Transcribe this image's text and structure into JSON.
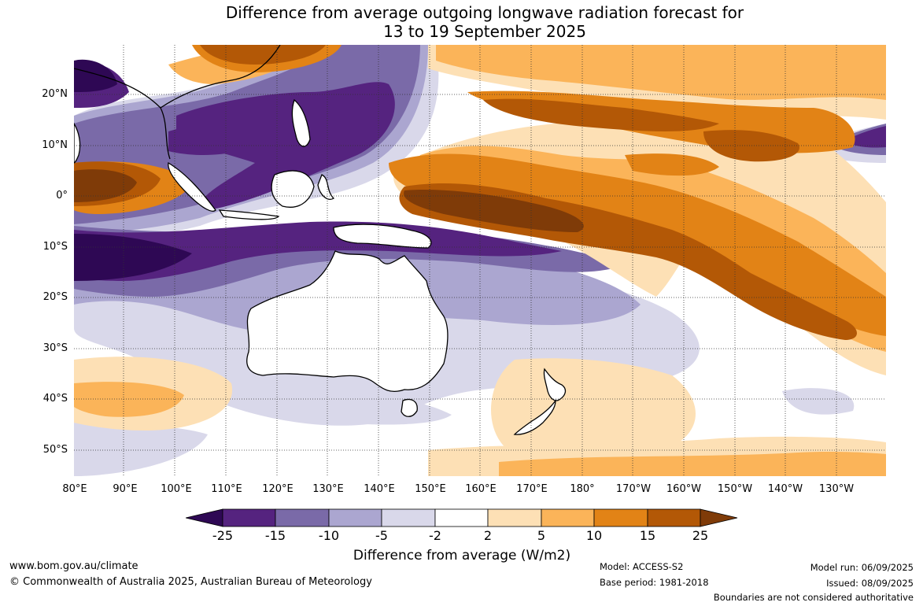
{
  "title": {
    "line1": "Difference from average outgoing longwave radiation forecast for",
    "line2": "13 to 19 September 2025"
  },
  "map": {
    "lat_labels": [
      "20°N",
      "10°N",
      "0°",
      "10°S",
      "20°S",
      "30°S",
      "40°S",
      "50°S"
    ],
    "lon_labels": [
      "80°E",
      "90°E",
      "100°E",
      "110°E",
      "120°E",
      "130°E",
      "140°E",
      "150°E",
      "160°E",
      "170°E",
      "180°",
      "170°W",
      "160°W",
      "150°W",
      "140°W",
      "130°W"
    ]
  },
  "colorbar": {
    "ticks": [
      "-25",
      "-15",
      "-10",
      "-5",
      "-2",
      "2",
      "5",
      "10",
      "15",
      "25"
    ],
    "colors": [
      "#2e0854",
      "#55237f",
      "#7a6aa8",
      "#aba6d0",
      "#d9d8ea",
      "#ffffff",
      "#fde0b5",
      "#fbb459",
      "#e28316",
      "#b35806",
      "#7f3b08"
    ],
    "title": "Difference from average (W/m2)"
  },
  "footer": {
    "website": "www.bom.gov.au/climate",
    "copyright": "© Commonwealth of Australia 2025, Australian Bureau of Meteorology",
    "model": "Model: ACCESS-S2",
    "base_period": "Base period: 1981-2018",
    "model_run": "Model run: 06/09/2025",
    "issued": "Issued: 08/09/2025",
    "disclaimer": "Boundaries are not considered authoritative"
  }
}
